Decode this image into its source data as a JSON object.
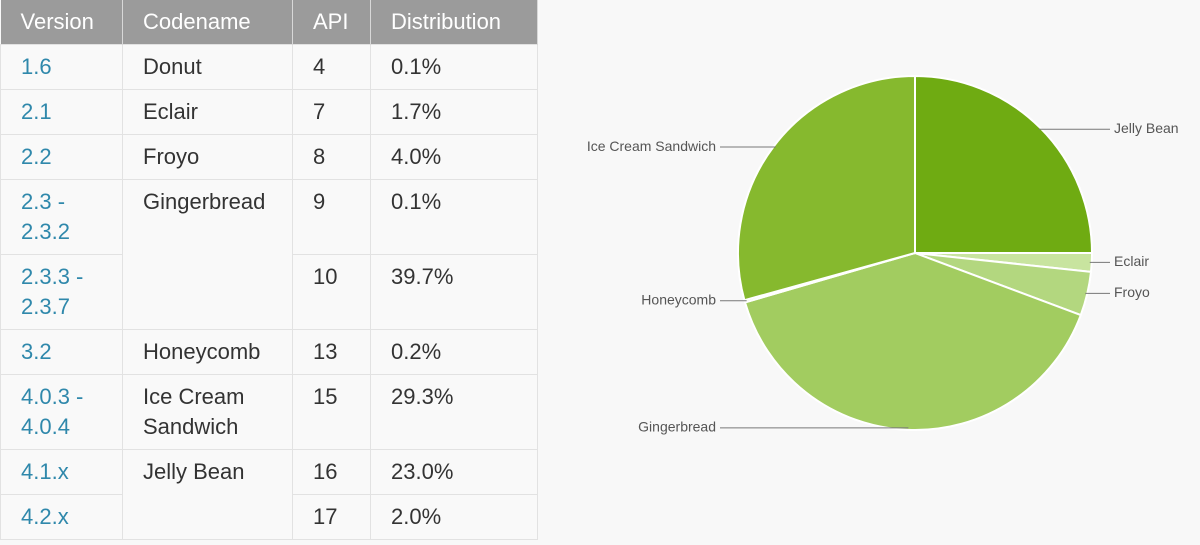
{
  "table": {
    "header": [
      "Version",
      "Codename",
      "API",
      "Distribution"
    ],
    "rows": [
      [
        "1.6",
        "Donut",
        4,
        "0.1%"
      ],
      [
        "2.1",
        "Eclair",
        7,
        "1.7%"
      ],
      [
        "2.2",
        "Froyo",
        8,
        "4.0%"
      ],
      [
        "2.3 - 2.3.2",
        "Gingerbread",
        9,
        "0.1%"
      ],
      [
        "2.3.3 - 2.3.7",
        null,
        10,
        "39.7%"
      ],
      [
        "3.2",
        "Honeycomb",
        13,
        "0.2%"
      ],
      [
        "4.0.3 - 4.0.4",
        "Ice Cream Sandwich",
        15,
        "29.3%"
      ],
      [
        "4.1.x",
        "Jelly Bean",
        16,
        "23.0%"
      ],
      [
        "4.2.x",
        null,
        17,
        "2.0%"
      ]
    ]
  },
  "chart_data": {
    "type": "pie",
    "categories": [
      "Jelly Bean",
      "Eclair",
      "Froyo",
      "Gingerbread",
      "Honeycomb",
      "Ice Cream Sandwich"
    ],
    "values": [
      25.0,
      1.7,
      4.0,
      39.8,
      0.2,
      29.3
    ],
    "colors": [
      "#6fab12",
      "#c8e49f",
      "#b3d77f",
      "#a2cc60",
      "#92c24a",
      "#86b92e"
    ]
  }
}
